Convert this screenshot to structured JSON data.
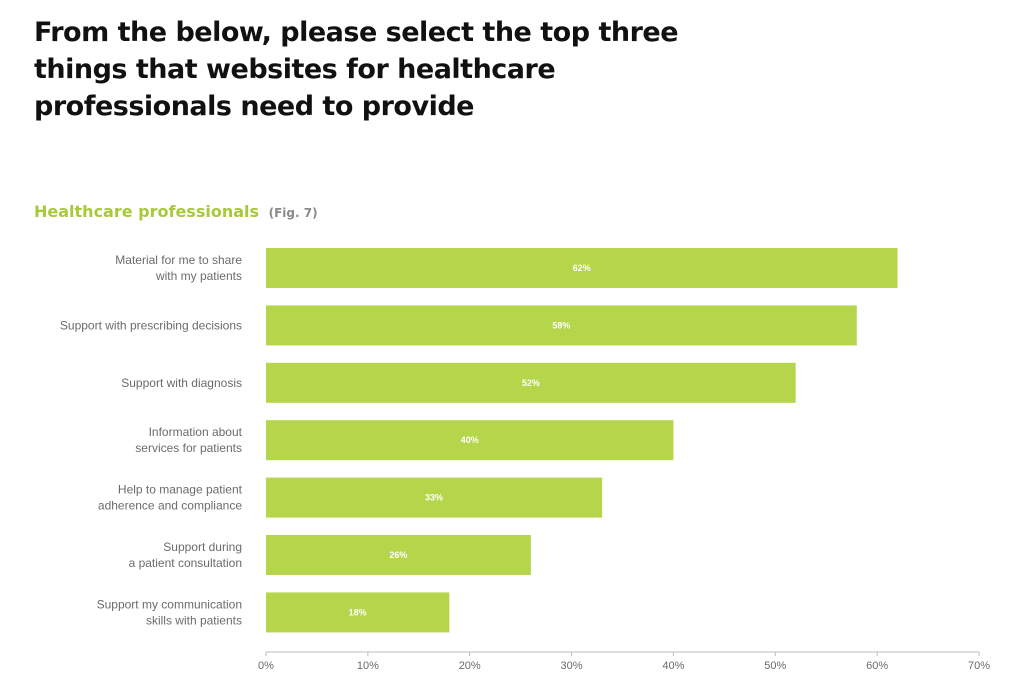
{
  "headline": "From the below, please select the top three things that websites for healthcare professionals need to provide",
  "subhead": {
    "title": "Healthcare professionals",
    "fig": "(Fig. 7)"
  },
  "colors": {
    "bar": "#b5d54b",
    "subhead": "#a8c93a",
    "text": "#111111",
    "axis": "#bdbdbd"
  },
  "chart_data": {
    "type": "bar",
    "orientation": "horizontal",
    "title": "Healthcare professionals",
    "categories": [
      [
        "Material for me to share",
        "with my patients"
      ],
      [
        "Support with prescribing decisions"
      ],
      [
        "Support with diagnosis"
      ],
      [
        "Information about",
        "services for patients"
      ],
      [
        "Help to manage patient",
        "adherence and compliance"
      ],
      [
        "Support during",
        "a patient consultation"
      ],
      [
        "Support my communication",
        "skills with patients"
      ]
    ],
    "values": [
      62,
      58,
      52,
      40,
      33,
      26,
      18
    ],
    "value_labels": [
      "62%",
      "58%",
      "52%",
      "40%",
      "33%",
      "26%",
      "18%"
    ],
    "xlim": [
      0,
      70
    ],
    "xticks": [
      0,
      10,
      20,
      30,
      40,
      50,
      60,
      70
    ],
    "xtick_labels": [
      "0%",
      "10%",
      "20%",
      "30%",
      "40%",
      "50%",
      "60%",
      "70%"
    ],
    "grid": false
  }
}
